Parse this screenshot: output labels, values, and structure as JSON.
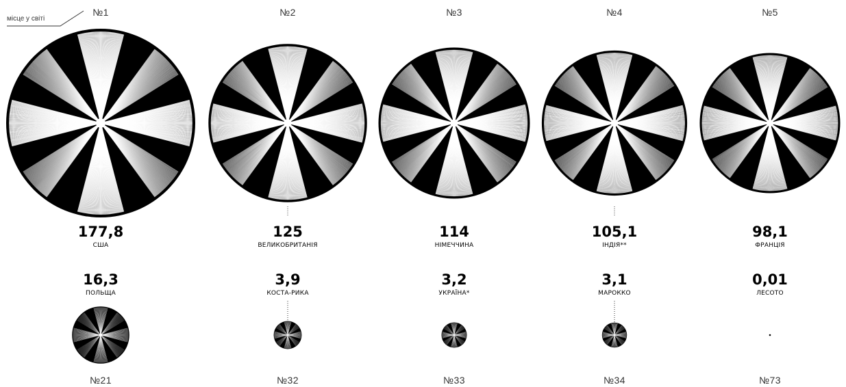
{
  "legend": {
    "rank_note": "місце у світі"
  },
  "colors": {
    "circle": "#000000",
    "pattern": "#ffffff",
    "text": "#000000",
    "muted": "#333333"
  },
  "chart_data": {
    "type": "bubble",
    "title": "",
    "rows": [
      {
        "items": [
          {
            "rank": "№1",
            "value": 177.8,
            "value_label": "177,8",
            "country": "США"
          },
          {
            "rank": "№2",
            "value": 125,
            "value_label": "125",
            "country": "ВЕЛИКОБРИТАНІЯ"
          },
          {
            "rank": "№3",
            "value": 114,
            "value_label": "114",
            "country": "НІМЕЧЧИНА"
          },
          {
            "rank": "№4",
            "value": 105.1,
            "value_label": "105,1",
            "country": "ІНДІЯ**"
          },
          {
            "rank": "№5",
            "value": 98.1,
            "value_label": "98,1",
            "country": "ФРАНЦІЯ"
          }
        ]
      },
      {
        "items": [
          {
            "rank": "№21",
            "value": 16.3,
            "value_label": "16,3",
            "country": "ПОЛЬЩА"
          },
          {
            "rank": "№32",
            "value": 3.9,
            "value_label": "3,9",
            "country": "КОСТА-РИКА"
          },
          {
            "rank": "№33",
            "value": 3.2,
            "value_label": "3,2",
            "country": "УКРАЇНА*"
          },
          {
            "rank": "№34",
            "value": 3.1,
            "value_label": "3,1",
            "country": "МАРОККО"
          },
          {
            "rank": "№73",
            "value": 0.01,
            "value_label": "0,01",
            "country": "ЛЕСОТО"
          }
        ]
      }
    ]
  }
}
